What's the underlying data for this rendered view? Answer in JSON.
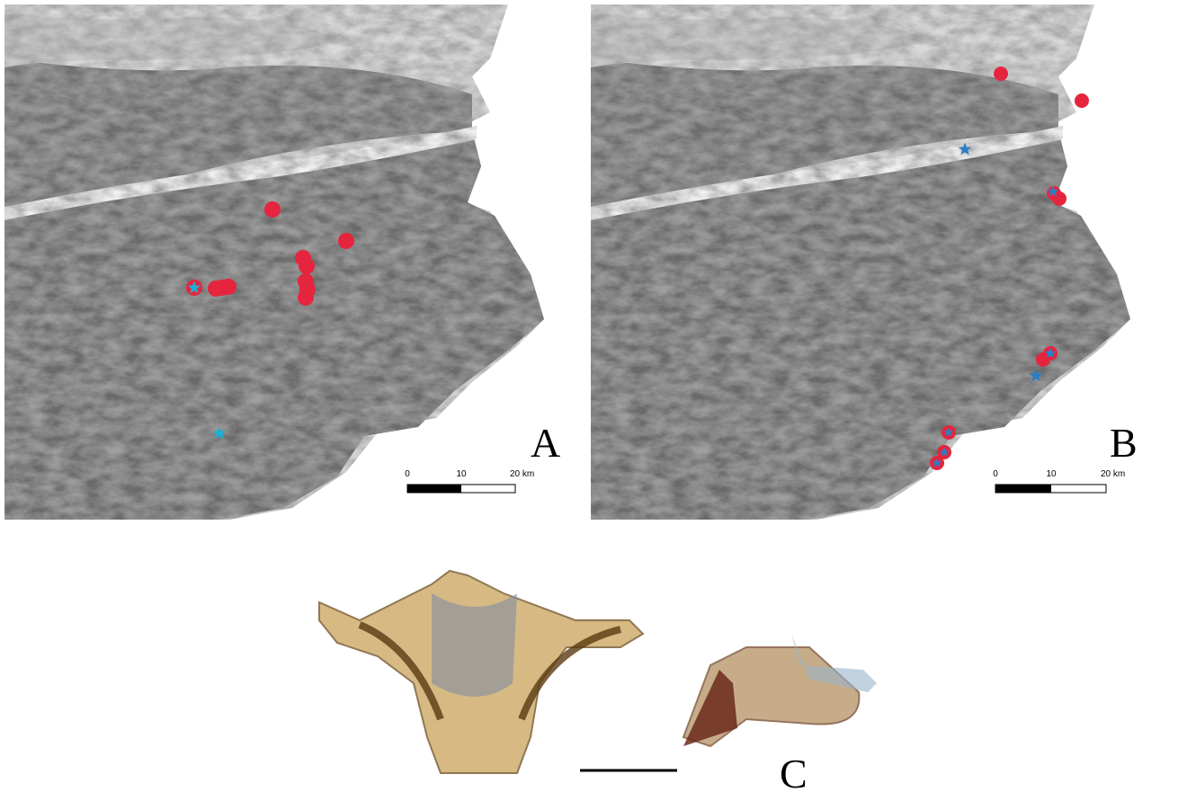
{
  "panels": [
    {
      "label": "A",
      "scale": [
        "0",
        "10",
        "20 km"
      ]
    },
    {
      "label": "B",
      "scale": [
        "0",
        "10",
        "20 km"
      ]
    },
    {
      "label": "C"
    }
  ]
}
